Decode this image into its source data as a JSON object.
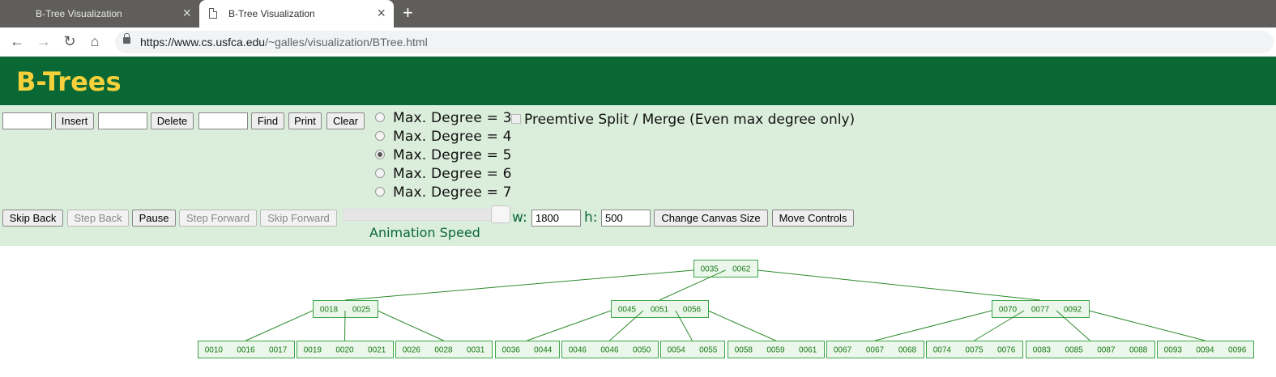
{
  "browser": {
    "tabs": [
      {
        "title": "B-Tree Visualization",
        "close": "×"
      },
      {
        "title": "B-Tree Visualization",
        "close": "×"
      }
    ],
    "new_tab": "+",
    "nav": {
      "back": "←",
      "forward": "→",
      "reload": "↻",
      "home": "⌂"
    },
    "url": {
      "host": "https://www.cs.usfca.edu",
      "path": "/~galles/visualization/BTree.html"
    }
  },
  "header": {
    "title": "B-Trees"
  },
  "controls": {
    "insert_label": "Insert",
    "delete_label": "Delete",
    "find_label": "Find",
    "print_label": "Print",
    "clear_label": "Clear",
    "degree_options": [
      {
        "label": "Max. Degree = 3",
        "checked": false
      },
      {
        "label": "Max. Degree = 4",
        "checked": false
      },
      {
        "label": "Max. Degree = 5",
        "checked": true
      },
      {
        "label": "Max. Degree = 6",
        "checked": false
      },
      {
        "label": "Max. Degree = 7",
        "checked": false
      }
    ],
    "preemptive_label": "Preemtive Split / Merge (Even max degree only)",
    "skip_back": "Skip Back",
    "step_back": "Step Back",
    "pause": "Pause",
    "step_forward": "Step Forward",
    "skip_forward": "Skip Forward",
    "speed_label": "Animation Speed",
    "w_label": "w:",
    "w_value": "1800",
    "h_label": "h:",
    "h_value": "500",
    "change_canvas": "Change Canvas Size",
    "move_controls": "Move Controls"
  },
  "tree": {
    "root": [
      "0035",
      "0062"
    ],
    "level1": [
      [
        "0018",
        "0025"
      ],
      [
        "0045",
        "0051",
        "0056"
      ],
      [
        "0070",
        "0077",
        "0092"
      ]
    ],
    "leaves": [
      [
        "0010",
        "0016",
        "0017"
      ],
      [
        "0019",
        "0020",
        "0021"
      ],
      [
        "0026",
        "0028",
        "0031"
      ],
      [
        "0036",
        "0044"
      ],
      [
        "0046",
        "0046",
        "0050"
      ],
      [
        "0054",
        "0055"
      ],
      [
        "0058",
        "0059",
        "0061"
      ],
      [
        "0067",
        "0067",
        "0068"
      ],
      [
        "0074",
        "0075",
        "0076"
      ],
      [
        "0083",
        "0085",
        "0087",
        "0088"
      ],
      [
        "0093",
        "0094",
        "0096"
      ]
    ]
  }
}
